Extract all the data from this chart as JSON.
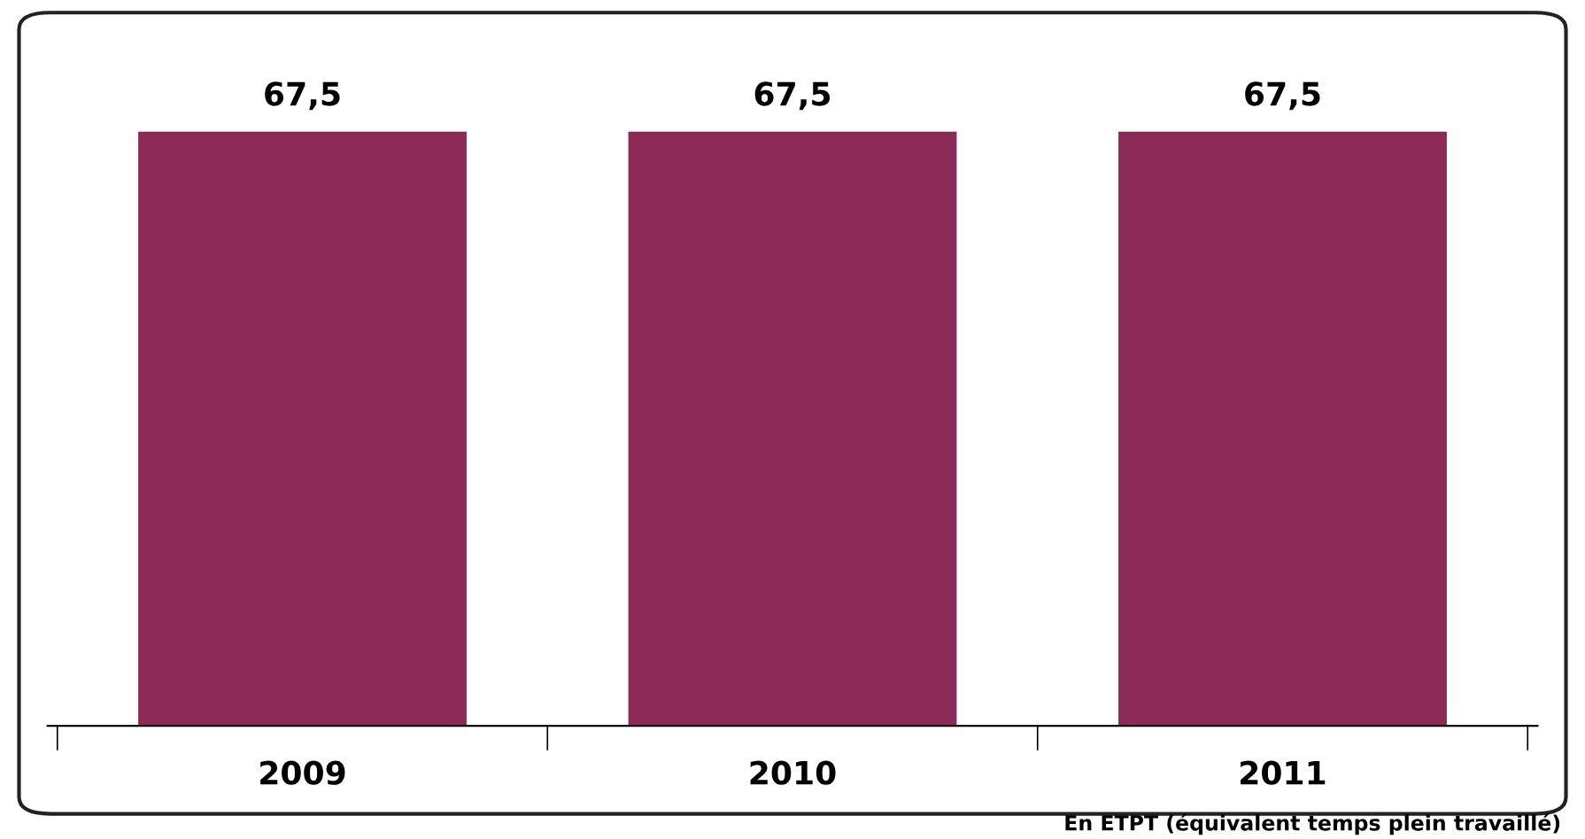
{
  "chart_data": {
    "type": "bar",
    "categories": [
      "2009",
      "2010",
      "2011"
    ],
    "values": [
      67.5,
      67.5,
      67.5
    ],
    "value_labels": [
      "67,5",
      "67,5",
      "67,5"
    ],
    "color": "#8c2a58",
    "annotations": [
      "En ETPT (équivalent temps plein travaillé)"
    ]
  }
}
